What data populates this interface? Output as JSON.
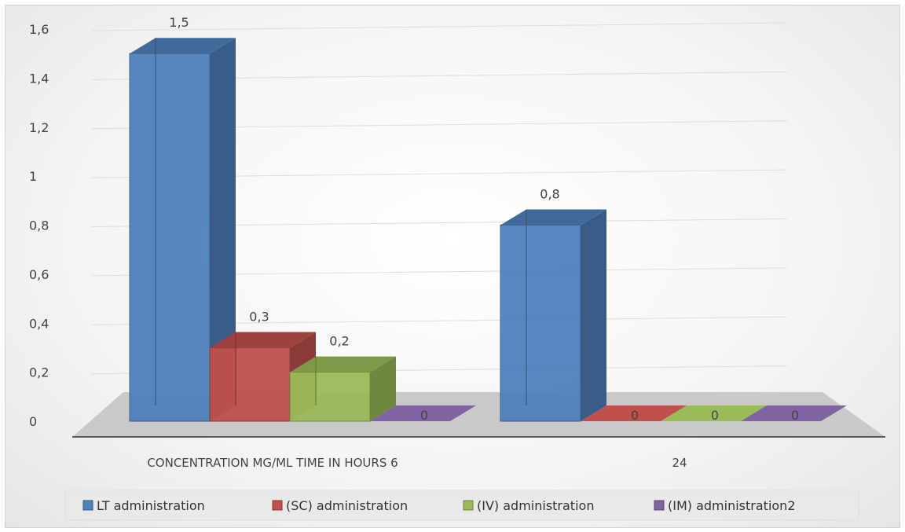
{
  "chart_data": {
    "type": "bar",
    "title": "",
    "xlabel": "",
    "ylabel": "",
    "ylim": [
      0,
      1.6
    ],
    "yticks": [
      "0",
      "0,2",
      "0,4",
      "0,6",
      "0,8",
      "1",
      "1,2",
      "1,4",
      "1,6"
    ],
    "categories": [
      "CONCENTRATION MG/ML  TIME IN HOURS  6",
      "24"
    ],
    "series": [
      {
        "name": "LT administration",
        "values": [
          1.5,
          0.8
        ],
        "labels": [
          "1,5",
          "0,8"
        ],
        "color": "#4f81bd"
      },
      {
        "name": "(SC) administration",
        "values": [
          0.3,
          0
        ],
        "labels": [
          "0,3",
          "0"
        ],
        "color": "#c0504d"
      },
      {
        "name": "(IV) administration",
        "values": [
          0.2,
          0
        ],
        "labels": [
          "0,2",
          "0"
        ],
        "color": "#9bbb59"
      },
      {
        "name": "(IM) administration2",
        "values": [
          0,
          0
        ],
        "labels": [
          "0",
          "0"
        ],
        "color": "#8064a2"
      }
    ],
    "grid": true,
    "legend": "bottom",
    "style": "3d-clustered-column"
  }
}
